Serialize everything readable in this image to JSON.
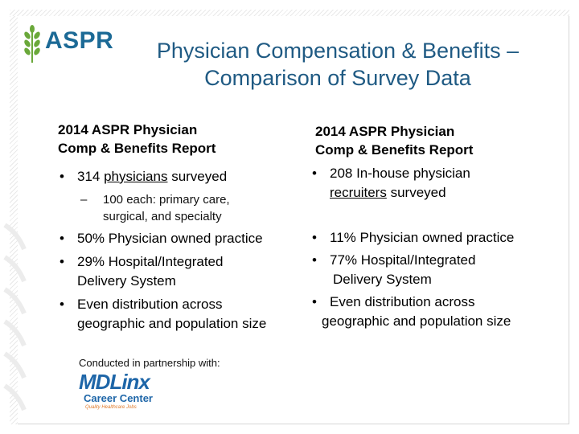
{
  "logo": {
    "text": "ASPR"
  },
  "title": {
    "line1": "Physician Compensation & Benefits –",
    "line2": "Comparison of Survey Data"
  },
  "left": {
    "heading_line1": "2014 ASPR Physician",
    "heading_line2": "Comp & Benefits Report",
    "b1_prefix": "314 ",
    "b1_link": "physicians",
    "b1_suffix": " surveyed",
    "sub_line1": "100 each: primary care,",
    "sub_line2": "surgical, and specialty",
    "b2": "50% Physician owned practice",
    "b3_line1": "29% Hospital/Integrated",
    "b3_line2": "Delivery System",
    "b4_line1": "Even distribution across",
    "b4_line2": "geographic and population size"
  },
  "right": {
    "heading_line1": "2014 ASPR Physician",
    "heading_line2": "Comp & Benefits Report",
    "b1_line1": "208 In-house physician",
    "b1_link": "recruiters",
    "b1_suffix": " surveyed",
    "b2": "11% Physician owned practice",
    "b3_line1": "77% Hospital/Integrated",
    "b3_line2": "Delivery System",
    "b4_line1": "Even distribution across",
    "b4_line2": "geographic and population size"
  },
  "bullet_char": "•",
  "dash_char": "–",
  "partner": {
    "label": "Conducted in partnership with:",
    "logo_md": "MD",
    "logo_linx": "Linx",
    "logo_sub": "Career Center",
    "logo_tagline": "Quality Healthcare Jobs"
  },
  "colors": {
    "brand_blue": "#1c6a96",
    "title_blue": "#1f5a83",
    "logo_green": "#6aa83a"
  }
}
